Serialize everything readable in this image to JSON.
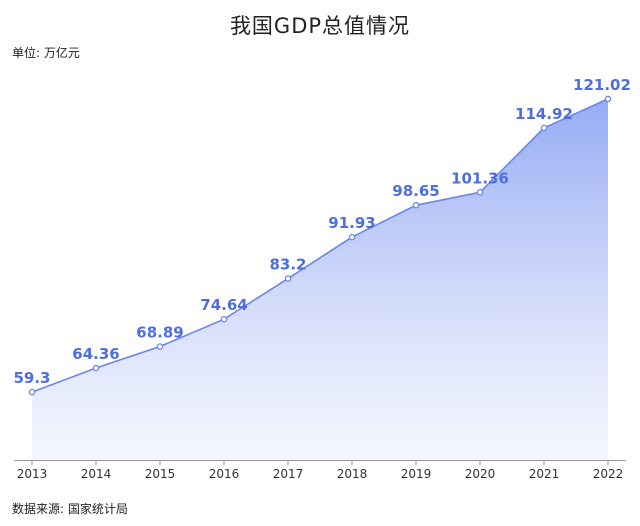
{
  "chart_data": {
    "type": "area",
    "title": "我国GDP总值情况",
    "unit_label": "单位: 万亿元",
    "source_label": "数据来源: 国家统计局",
    "categories": [
      "2013",
      "2014",
      "2015",
      "2016",
      "2017",
      "2018",
      "2019",
      "2020",
      "2021",
      "2022"
    ],
    "values": [
      59.3,
      64.36,
      68.89,
      74.64,
      83.2,
      91.93,
      98.65,
      101.36,
      114.92,
      121.02
    ],
    "value_labels": [
      "59.3",
      "64.36",
      "68.89",
      "74.64",
      "83.2",
      "91.93",
      "98.65",
      "101.36",
      "114.92",
      "121.02"
    ],
    "ylim": [
      45,
      125
    ],
    "grid": false,
    "legend": "none",
    "colors": {
      "line": "#6a86ea",
      "fill_top": "#8fa6f4",
      "fill_bottom": "#eef1fd",
      "label": "#4e6ee0",
      "marker_stroke": "#6a86ea",
      "axis": "#999999"
    }
  }
}
